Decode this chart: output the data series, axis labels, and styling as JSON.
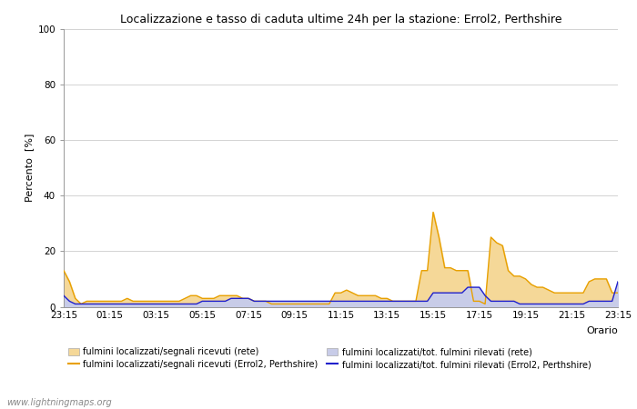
{
  "title": "Localizzazione e tasso di caduta ultime 24h per la stazione: Errol2, Perthshire",
  "ylabel": "Percento  [%]",
  "xlabel": "Orario",
  "ylim": [
    0,
    100
  ],
  "yticks": [
    0,
    20,
    40,
    60,
    80,
    100
  ],
  "x_labels": [
    "23:15",
    "01:15",
    "03:15",
    "05:15",
    "07:15",
    "09:15",
    "11:15",
    "13:15",
    "15:15",
    "17:15",
    "19:15",
    "21:15",
    "23:15"
  ],
  "watermark": "www.lightningmaps.org",
  "color_orange_line": "#e8a000",
  "color_orange_fill": "#f5d898",
  "color_blue_line": "#2020cc",
  "color_blue_fill": "#c8cce8",
  "legend_labels": [
    "fulmini localizzati/segnali ricevuti (rete)",
    "fulmini localizzati/segnali ricevuti (Errol2, Perthshire)",
    "fulmini localizzati/tot. fulmini rilevati (rete)",
    "fulmini localizzati/tot. fulmini rilevati (Errol2, Perthshire)"
  ],
  "n_points": 97,
  "orange_fill_data": [
    13,
    9,
    3,
    1,
    2,
    2,
    2,
    2,
    2,
    2,
    2,
    3,
    2,
    2,
    2,
    2,
    2,
    2,
    2,
    2,
    2,
    3,
    4,
    4,
    3,
    3,
    3,
    4,
    4,
    4,
    4,
    3,
    3,
    2,
    2,
    2,
    1,
    1,
    1,
    1,
    1,
    1,
    1,
    1,
    1,
    1,
    1,
    5,
    5,
    6,
    5,
    4,
    4,
    4,
    4,
    3,
    3,
    2,
    2,
    2,
    2,
    2,
    13,
    13,
    34,
    25,
    14,
    14,
    13,
    13,
    13,
    2,
    2,
    1,
    25,
    23,
    22,
    13,
    11,
    11,
    10,
    8,
    7,
    7,
    6,
    5,
    5,
    5,
    5,
    5,
    5,
    9,
    10,
    10,
    10,
    5,
    5
  ],
  "orange_line_data": [
    13,
    9,
    3,
    1,
    2,
    2,
    2,
    2,
    2,
    2,
    2,
    3,
    2,
    2,
    2,
    2,
    2,
    2,
    2,
    2,
    2,
    3,
    4,
    4,
    3,
    3,
    3,
    4,
    4,
    4,
    4,
    3,
    3,
    2,
    2,
    2,
    1,
    1,
    1,
    1,
    1,
    1,
    1,
    1,
    1,
    1,
    1,
    5,
    5,
    6,
    5,
    4,
    4,
    4,
    4,
    3,
    3,
    2,
    2,
    2,
    2,
    2,
    13,
    13,
    34,
    25,
    14,
    14,
    13,
    13,
    13,
    2,
    2,
    1,
    25,
    23,
    22,
    13,
    11,
    11,
    10,
    8,
    7,
    7,
    6,
    5,
    5,
    5,
    5,
    5,
    5,
    9,
    10,
    10,
    10,
    5,
    5
  ],
  "blue_fill_data": [
    4,
    2,
    1,
    1,
    1,
    1,
    1,
    1,
    1,
    1,
    1,
    1,
    1,
    1,
    1,
    1,
    1,
    1,
    1,
    1,
    1,
    1,
    1,
    1,
    2,
    2,
    2,
    2,
    2,
    3,
    3,
    3,
    3,
    2,
    2,
    2,
    2,
    2,
    2,
    2,
    2,
    2,
    2,
    2,
    2,
    2,
    2,
    2,
    2,
    2,
    2,
    2,
    2,
    2,
    2,
    2,
    2,
    2,
    2,
    2,
    2,
    2,
    2,
    2,
    5,
    5,
    5,
    5,
    5,
    5,
    7,
    7,
    7,
    4,
    2,
    2,
    2,
    2,
    2,
    1,
    1,
    1,
    1,
    1,
    1,
    1,
    1,
    1,
    1,
    1,
    1,
    2,
    2,
    2,
    2,
    2,
    9
  ],
  "blue_line_data": [
    4,
    2,
    1,
    1,
    1,
    1,
    1,
    1,
    1,
    1,
    1,
    1,
    1,
    1,
    1,
    1,
    1,
    1,
    1,
    1,
    1,
    1,
    1,
    1,
    2,
    2,
    2,
    2,
    2,
    3,
    3,
    3,
    3,
    2,
    2,
    2,
    2,
    2,
    2,
    2,
    2,
    2,
    2,
    2,
    2,
    2,
    2,
    2,
    2,
    2,
    2,
    2,
    2,
    2,
    2,
    2,
    2,
    2,
    2,
    2,
    2,
    2,
    2,
    2,
    5,
    5,
    5,
    5,
    5,
    5,
    7,
    7,
    7,
    4,
    2,
    2,
    2,
    2,
    2,
    1,
    1,
    1,
    1,
    1,
    1,
    1,
    1,
    1,
    1,
    1,
    1,
    2,
    2,
    2,
    2,
    2,
    9
  ],
  "bg_color": "#ffffff",
  "plot_bg_color": "#ffffff",
  "grid_color": "#cccccc",
  "spine_color": "#999999"
}
